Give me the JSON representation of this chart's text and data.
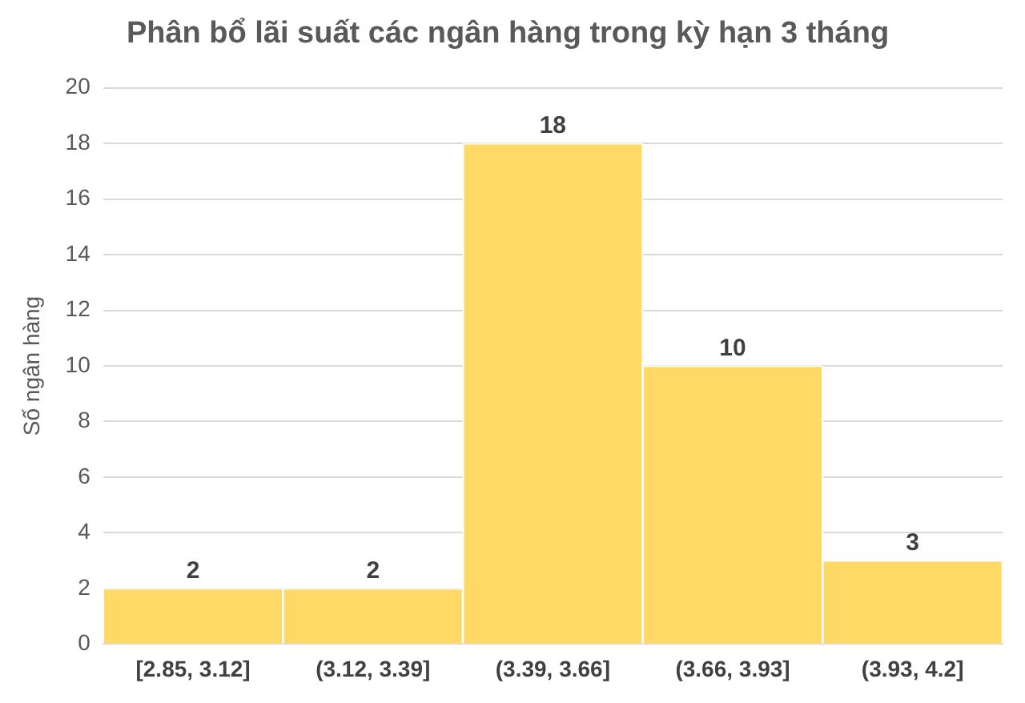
{
  "chart_data": {
    "type": "bar",
    "title": "Phân bổ lãi suất các ngân hàng trong kỳ hạn 3 tháng",
    "ylabel": "Số ngân hàng",
    "categories": [
      "[2.85, 3.12]",
      "(3.12, 3.39]",
      "(3.39, 3.66]",
      "(3.66, 3.93]",
      "(3.93, 4.2]"
    ],
    "values": [
      2,
      2,
      18,
      10,
      3
    ],
    "color": "#ffd966",
    "ylim": [
      0,
      20
    ],
    "yticks": [
      0,
      2,
      4,
      6,
      8,
      10,
      12,
      14,
      16,
      18,
      20
    ],
    "grid": "y",
    "data_labels": true
  }
}
